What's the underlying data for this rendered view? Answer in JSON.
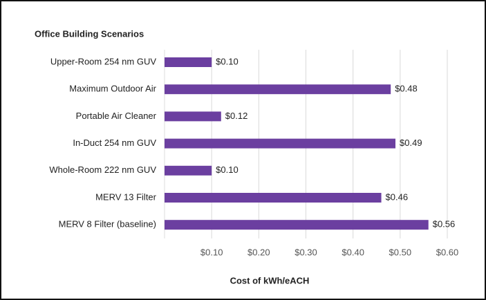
{
  "chart_data": {
    "type": "bar",
    "orientation": "horizontal",
    "title": "Office Building Scenarios",
    "xlabel": "Cost of kWh/eACH",
    "categories": [
      "Upper-Room 254 nm GUV",
      "Maximum Outdoor Air",
      "Portable Air Cleaner",
      "In-Duct 254 nm GUV",
      "Whole-Room 222 nm GUV",
      "MERV 13 Filter",
      "MERV 8 Filter (baseline)"
    ],
    "values": [
      0.1,
      0.48,
      0.12,
      0.49,
      0.1,
      0.46,
      0.56
    ],
    "value_labels": [
      "$0.10",
      "$0.48",
      "$0.12",
      "$0.49",
      "$0.10",
      "$0.46",
      "$0.56"
    ],
    "color": "#6b3fa0",
    "xlim": [
      0,
      0.6
    ],
    "xticks": [
      {
        "value": 0.1,
        "label": "$0.10"
      },
      {
        "value": 0.2,
        "label": "$0.20"
      },
      {
        "value": 0.3,
        "label": "$0.30"
      },
      {
        "value": 0.4,
        "label": "$0.40"
      },
      {
        "value": 0.5,
        "label": "$0.50"
      },
      {
        "value": 0.6,
        "label": "$0.60"
      }
    ],
    "grid": true
  }
}
